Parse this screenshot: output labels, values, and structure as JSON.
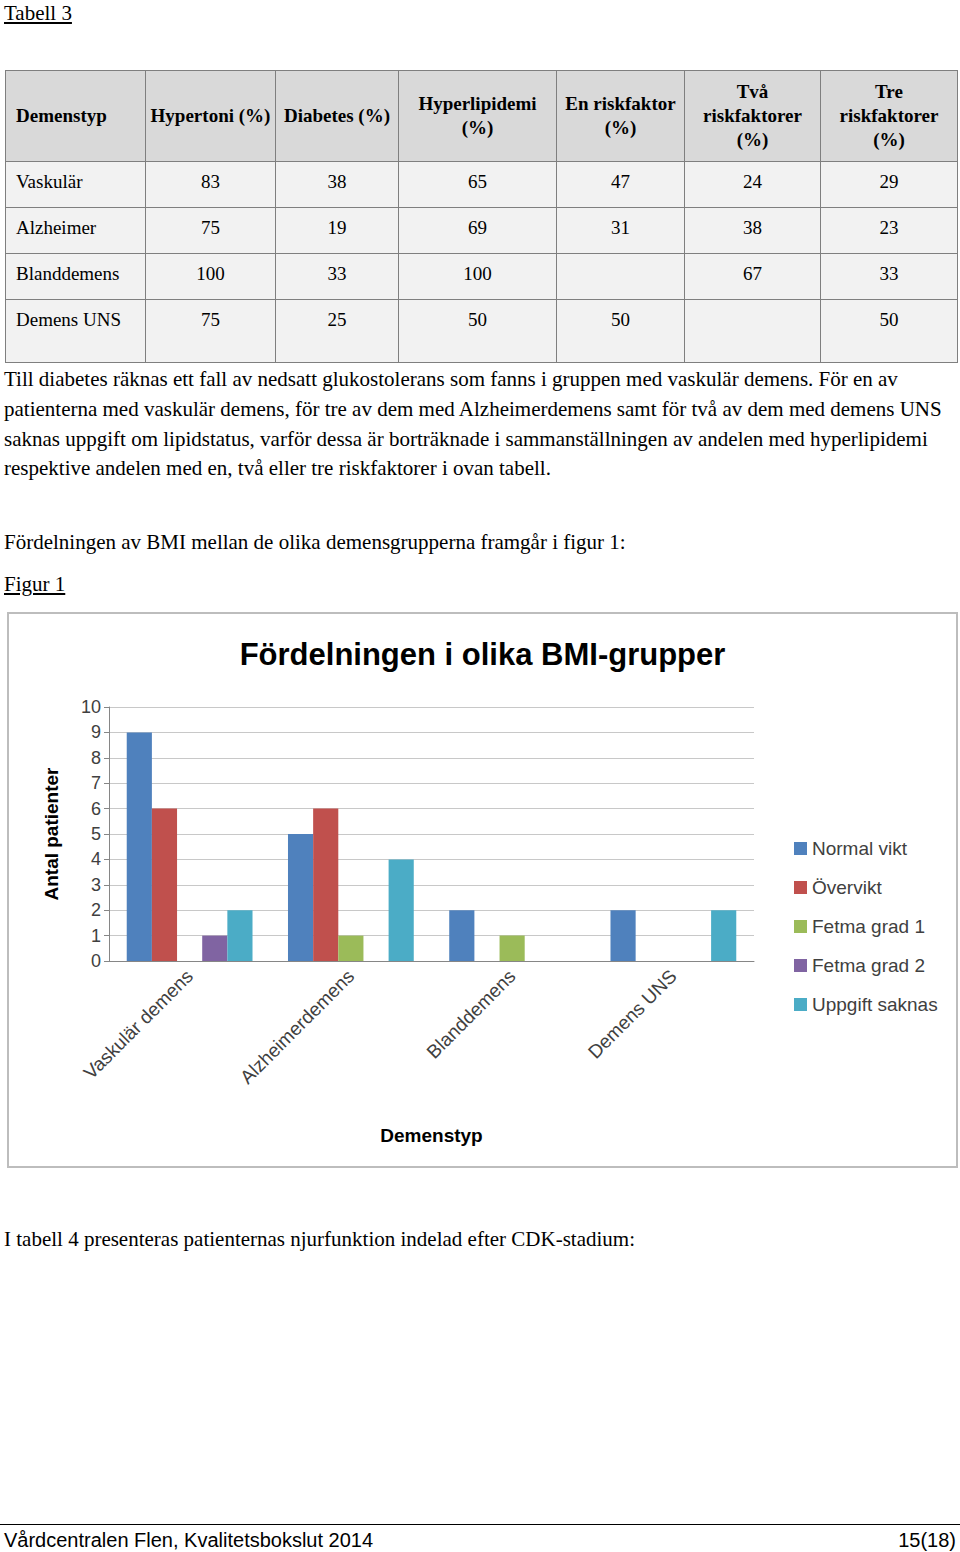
{
  "table_caption": "Tabell 3",
  "table": {
    "header": [
      "Demenstyp",
      "Hypertoni (%)",
      "Diabetes (%)",
      "Hyperlipidemi (%)",
      "En riskfaktor (%)",
      "Två riskfaktorer (%)",
      "Tre riskfaktorer (%)"
    ],
    "rows": [
      [
        "Vaskulär",
        83,
        38,
        65,
        47,
        24,
        29
      ],
      [
        "Alzheimer",
        75,
        19,
        69,
        31,
        38,
        23
      ],
      [
        "Blanddemens",
        100,
        33,
        100,
        null,
        67,
        33
      ],
      [
        "Demens UNS",
        75,
        25,
        50,
        50,
        null,
        50
      ]
    ]
  },
  "paragraphs": [
    "Till diabetes räknas ett fall av nedsatt glukostolerans som fanns i gruppen med vaskulär demens. För en av patienterna med vaskulär demens, för tre av dem med Alzheimerdemens samt för två av dem med demens UNS saknas uppgift om lipidstatus, varför dessa är borträknade i sammanställningen av andelen med hyperlipidemi respektive andelen med en, två eller tre riskfaktorer i ovan tabell.",
    "Fördelningen av BMI mellan de olika demensgrupperna framgår i figur 1:"
  ],
  "figure_caption": "Figur 1",
  "chart_data": {
    "type": "bar",
    "title": "Fördelningen i olika BMI-grupper",
    "x_label": "Demenstyp",
    "y_label": "Antal patienter",
    "categories": [
      "Vaskulär demens",
      "Alzheimerdemens",
      "Blanddemens",
      "Demens UNS"
    ],
    "series": [
      {
        "name": "Normal vikt",
        "color": "#4f81bd",
        "values": [
          9,
          5,
          2,
          2
        ]
      },
      {
        "name": "Övervikt",
        "color": "#c0504d",
        "values": [
          6,
          6,
          0,
          0
        ]
      },
      {
        "name": "Fetma grad 1",
        "color": "#9bbb59",
        "values": [
          0,
          1,
          1,
          0
        ]
      },
      {
        "name": "Fetma grad 2",
        "color": "#8064a2",
        "values": [
          1,
          0,
          0,
          0
        ]
      },
      {
        "name": "Uppgift saknas",
        "color": "#4bacc6",
        "values": [
          2,
          4,
          0,
          2
        ]
      }
    ],
    "ylim": [
      0,
      10
    ],
    "yticks": [
      0,
      1,
      2,
      3,
      4,
      5,
      6,
      7,
      8,
      9,
      10
    ],
    "grid": true,
    "legend": "right"
  },
  "closing": "I tabell 4 presenteras patienternas njurfunktion indelad efter CDK-stadium:",
  "footer": {
    "left": "Vårdcentralen Flen, Kvalitetsbokslut 2014",
    "right": "15(18)"
  }
}
